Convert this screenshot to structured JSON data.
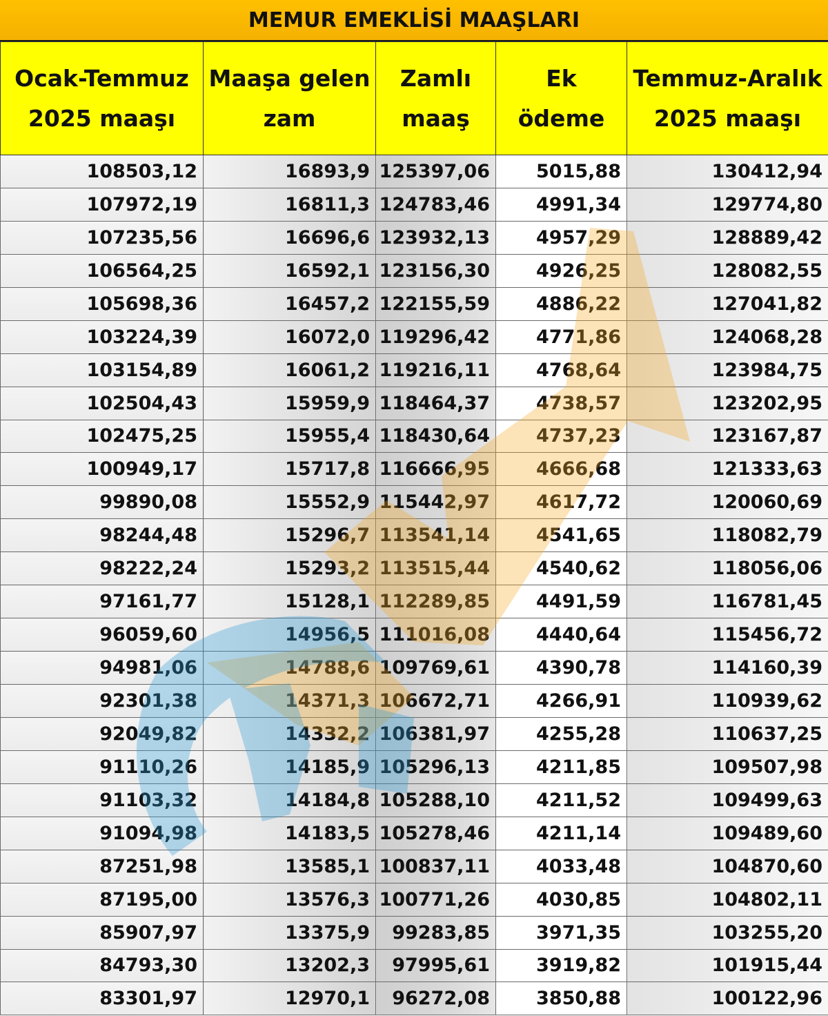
{
  "title": "MEMUR EMEKLİSİ MAAŞLARI",
  "headers": [
    "Ocak-Temmuz\n2025 maaşı",
    "Maaşa gelen\nzam",
    "Zamlı\nmaaş",
    "Ek ödeme",
    "Temmuz-Aralık\n2025 maaşı"
  ],
  "rows": [
    [
      "108503,12",
      "16893,9",
      "125397,06",
      "5015,88",
      "130412,94"
    ],
    [
      "107972,19",
      "16811,3",
      "124783,46",
      "4991,34",
      "129774,80"
    ],
    [
      "107235,56",
      "16696,6",
      "123932,13",
      "4957,29",
      "128889,42"
    ],
    [
      "106564,25",
      "16592,1",
      "123156,30",
      "4926,25",
      "128082,55"
    ],
    [
      "105698,36",
      "16457,2",
      "122155,59",
      "4886,22",
      "127041,82"
    ],
    [
      "103224,39",
      "16072,0",
      "119296,42",
      "4771,86",
      "124068,28"
    ],
    [
      "103154,89",
      "16061,2",
      "119216,11",
      "4768,64",
      "123984,75"
    ],
    [
      "102504,43",
      "15959,9",
      "118464,37",
      "4738,57",
      "123202,95"
    ],
    [
      "102475,25",
      "15955,4",
      "118430,64",
      "4737,23",
      "123167,87"
    ],
    [
      "100949,17",
      "15717,8",
      "116666,95",
      "4666,68",
      "121333,63"
    ],
    [
      "99890,08",
      "15552,9",
      "115442,97",
      "4617,72",
      "120060,69"
    ],
    [
      "98244,48",
      "15296,7",
      "113541,14",
      "4541,65",
      "118082,79"
    ],
    [
      "98222,24",
      "15293,2",
      "113515,44",
      "4540,62",
      "118056,06"
    ],
    [
      "97161,77",
      "15128,1",
      "112289,85",
      "4491,59",
      "116781,45"
    ],
    [
      "96059,60",
      "14956,5",
      "111016,08",
      "4440,64",
      "115456,72"
    ],
    [
      "94981,06",
      "14788,6",
      "109769,61",
      "4390,78",
      "114160,39"
    ],
    [
      "92301,38",
      "14371,3",
      "106672,71",
      "4266,91",
      "110939,62"
    ],
    [
      "92049,82",
      "14332,2",
      "106381,97",
      "4255,28",
      "110637,25"
    ],
    [
      "91110,26",
      "14185,9",
      "105296,13",
      "4211,85",
      "109507,98"
    ],
    [
      "91103,32",
      "14184,8",
      "105288,10",
      "4211,52",
      "109499,63"
    ],
    [
      "91094,98",
      "14183,5",
      "105278,46",
      "4211,14",
      "109489,60"
    ],
    [
      "87251,98",
      "13585,1",
      "100837,11",
      "4033,48",
      "104870,60"
    ],
    [
      "87195,00",
      "13576,3",
      "100771,26",
      "4030,85",
      "104802,11"
    ],
    [
      "85907,97",
      "13375,9",
      "99283,85",
      "3971,35",
      "103255,20"
    ],
    [
      "84793,30",
      "13202,3",
      "97995,61",
      "3919,82",
      "101915,44"
    ],
    [
      "83301,97",
      "12970,1",
      "96272,08",
      "3850,88",
      "100122,96"
    ]
  ],
  "colors": {
    "title_bg": "#ffc000",
    "header_bg": "#ffff00",
    "watermark_orange": "#f7a823",
    "watermark_blue": "#2b9ad6"
  }
}
